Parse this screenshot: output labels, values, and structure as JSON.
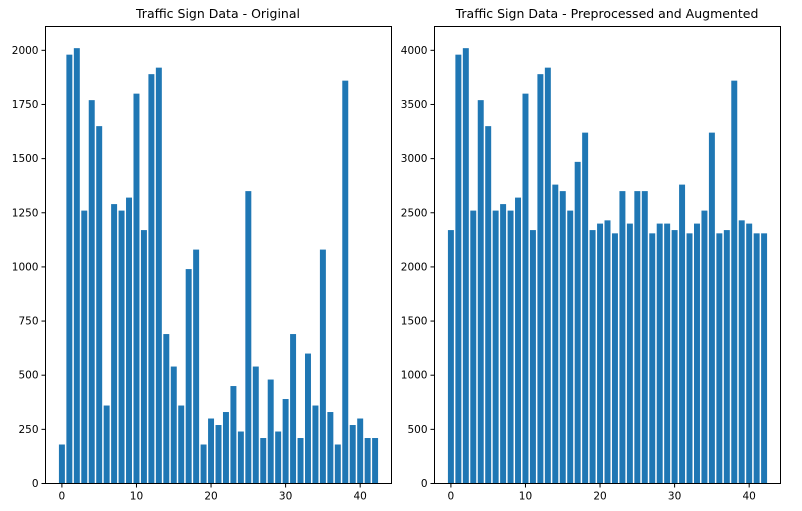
{
  "figure": {
    "bar_color": "#1f77b4",
    "background": "#ffffff"
  },
  "chart_data": [
    {
      "type": "bar",
      "title": "Traffic Sign Data - Original",
      "xlabel": "",
      "ylabel": "",
      "x": [
        0,
        1,
        2,
        3,
        4,
        5,
        6,
        7,
        8,
        9,
        10,
        11,
        12,
        13,
        14,
        15,
        16,
        17,
        18,
        19,
        20,
        21,
        22,
        23,
        24,
        25,
        26,
        27,
        28,
        29,
        30,
        31,
        32,
        33,
        34,
        35,
        36,
        37,
        38,
        39,
        40,
        41,
        42
      ],
      "values": [
        180,
        1980,
        2010,
        1260,
        1770,
        1650,
        360,
        1290,
        1260,
        1320,
        1800,
        1170,
        1890,
        1920,
        690,
        540,
        360,
        990,
        1080,
        180,
        300,
        270,
        330,
        450,
        240,
        1350,
        540,
        210,
        480,
        240,
        390,
        690,
        210,
        600,
        360,
        1080,
        330,
        180,
        1860,
        270,
        300,
        210,
        210
      ],
      "xlim": [
        -2.2,
        44.2
      ],
      "ylim": [
        0,
        2110
      ],
      "xticks": [
        0,
        10,
        20,
        30,
        40
      ],
      "yticks": [
        0,
        250,
        500,
        750,
        1000,
        1250,
        1500,
        1750,
        2000
      ],
      "grid": false
    },
    {
      "type": "bar",
      "title": "Traffic Sign Data - Preprocessed and Augmented",
      "xlabel": "",
      "ylabel": "",
      "x": [
        0,
        1,
        2,
        3,
        4,
        5,
        6,
        7,
        8,
        9,
        10,
        11,
        12,
        13,
        14,
        15,
        16,
        17,
        18,
        19,
        20,
        21,
        22,
        23,
        24,
        25,
        26,
        27,
        28,
        29,
        30,
        31,
        32,
        33,
        34,
        35,
        36,
        37,
        38,
        39,
        40,
        41,
        42
      ],
      "values": [
        2340,
        3960,
        4020,
        2520,
        3540,
        3300,
        2520,
        2580,
        2520,
        2640,
        3600,
        2340,
        3780,
        3840,
        2760,
        2700,
        2520,
        2970,
        3240,
        2340,
        2400,
        2430,
        2310,
        2700,
        2400,
        2700,
        2700,
        2310,
        2400,
        2400,
        2340,
        2760,
        2310,
        2400,
        2520,
        3240,
        2310,
        2340,
        3720,
        2430,
        2400,
        2310,
        2310
      ],
      "xlim": [
        -2.2,
        44.2
      ],
      "ylim": [
        0,
        4220
      ],
      "xticks": [
        0,
        10,
        20,
        30,
        40
      ],
      "yticks": [
        0,
        500,
        1000,
        1500,
        2000,
        2500,
        3000,
        3500,
        4000
      ],
      "grid": false
    }
  ]
}
